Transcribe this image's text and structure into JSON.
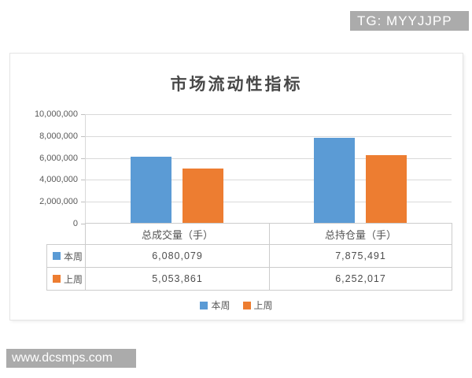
{
  "tg_badge": {
    "text": "TG: MYYJJPP",
    "bg": "#ABABAB"
  },
  "watermark": {
    "text": "www.dcsmps.com",
    "bg": "#ABABAB"
  },
  "chart_data": {
    "type": "bar",
    "title": "市场流动性指标",
    "categories": [
      "总成交量（手）",
      "总持仓量（手）"
    ],
    "series": [
      {
        "name": "本周",
        "color": "#5B9BD5",
        "values": [
          6080079,
          7875491
        ],
        "value_labels": [
          "6,080,079",
          "7,875,491"
        ]
      },
      {
        "name": "上周",
        "color": "#ED7D31",
        "values": [
          5053861,
          6252017
        ],
        "value_labels": [
          "5,053,861",
          "6,252,017"
        ]
      }
    ],
    "ylim": [
      0,
      10000000
    ],
    "yticks": [
      {
        "value": 10000000,
        "label": "10,000,000"
      },
      {
        "value": 8000000,
        "label": "8,000,000"
      },
      {
        "value": 6000000,
        "label": "6,000,000"
      },
      {
        "value": 4000000,
        "label": "4,000,000"
      },
      {
        "value": 2000000,
        "label": "2,000,000"
      },
      {
        "value": 0,
        "label": "0"
      }
    ],
    "grid": true,
    "legend_position": "bottom",
    "legend": [
      "本周",
      "上周"
    ],
    "data_table_shown": true,
    "grid_color": "#D9D9D9",
    "table_border_color": "#CCCCCC"
  }
}
